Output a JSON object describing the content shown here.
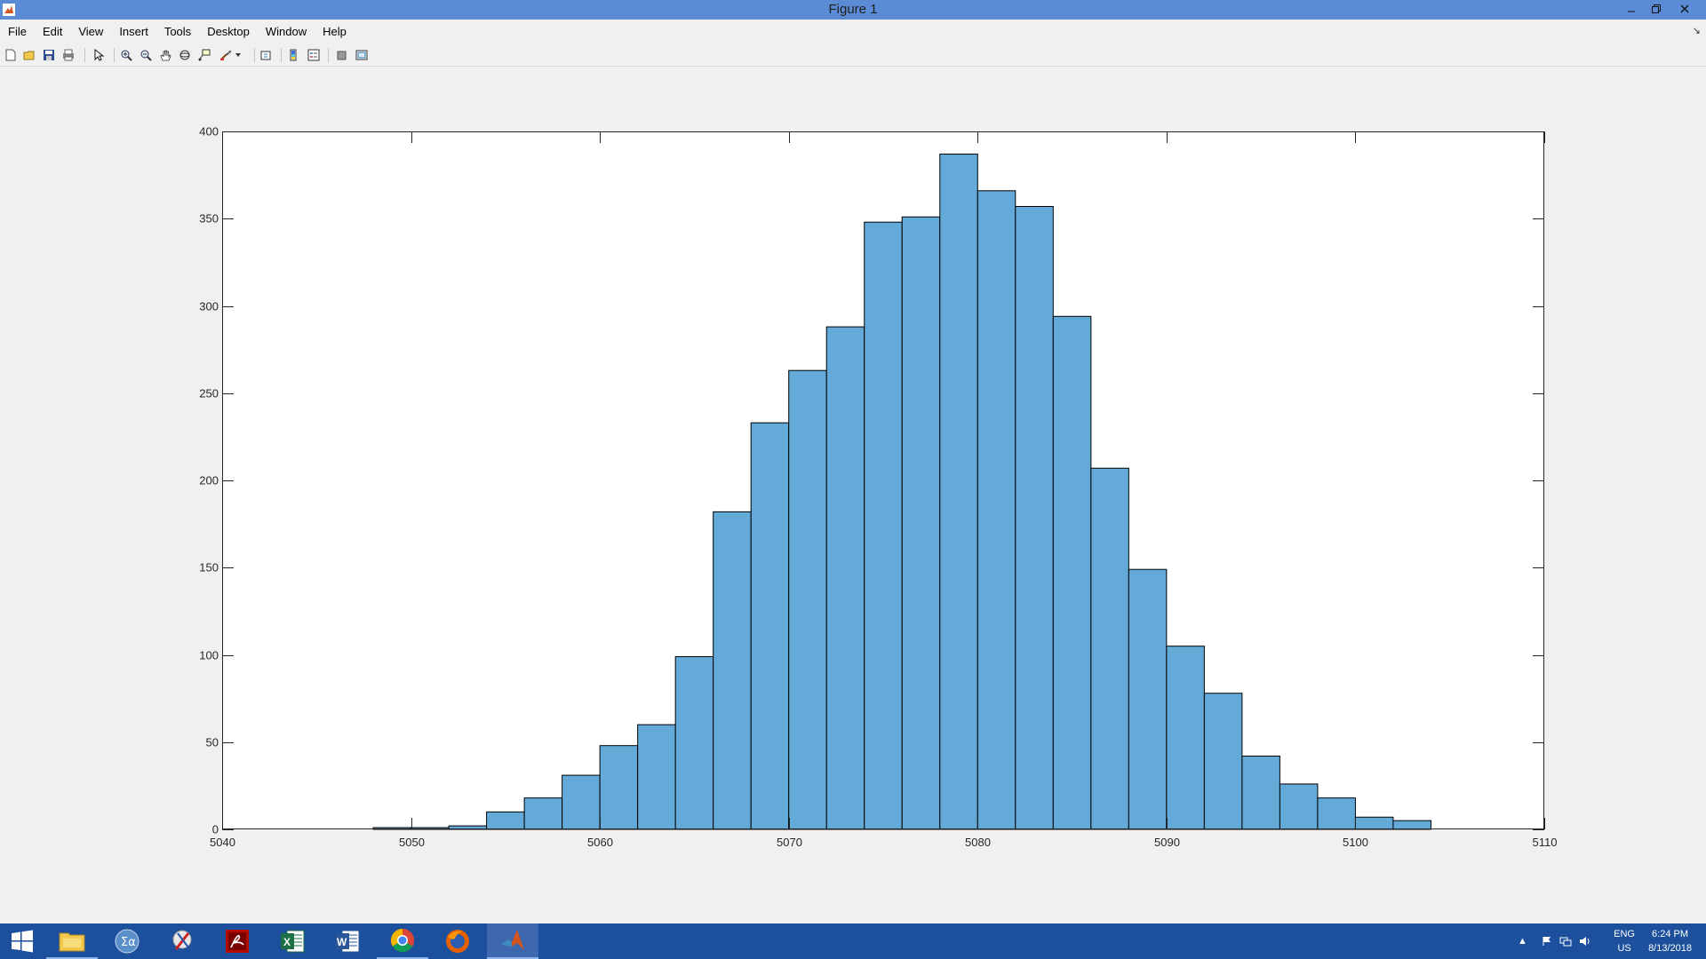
{
  "window": {
    "title": "Figure 1",
    "minimize_icon": "minimize-icon",
    "restore_icon": "restore-icon",
    "close_icon": "close-icon"
  },
  "menu": {
    "items": [
      "File",
      "Edit",
      "View",
      "Insert",
      "Tools",
      "Desktop",
      "Window",
      "Help"
    ]
  },
  "toolbar": {
    "buttons": [
      "new-figure-icon",
      "open-file-icon",
      "save-icon",
      "print-icon",
      "edit-plot-icon",
      "zoom-in-icon",
      "zoom-out-icon",
      "pan-icon",
      "rotate-3d-icon",
      "data-cursor-icon",
      "brush-icon",
      "link-plot-icon",
      "insert-colorbar-icon",
      "insert-legend-icon",
      "hide-plot-tools-icon",
      "show-plot-tools-icon"
    ]
  },
  "chart_data": {
    "type": "bar",
    "subtype": "histogram",
    "title": "",
    "xlabel": "",
    "ylabel": "",
    "xlim": [
      5040,
      5110
    ],
    "ylim": [
      0,
      400
    ],
    "xticks": [
      5040,
      5050,
      5060,
      5070,
      5080,
      5090,
      5100,
      5110
    ],
    "yticks": [
      0,
      50,
      100,
      150,
      200,
      250,
      300,
      350,
      400
    ],
    "bin_width": 2,
    "bin_edges": [
      5048,
      5050,
      5052,
      5054,
      5056,
      5058,
      5060,
      5062,
      5064,
      5066,
      5068,
      5070,
      5072,
      5074,
      5076,
      5078,
      5080,
      5082,
      5084,
      5086,
      5088,
      5090,
      5092,
      5094,
      5096,
      5098,
      5100,
      5102,
      5104
    ],
    "values": [
      1,
      1,
      2,
      10,
      18,
      31,
      48,
      60,
      99,
      182,
      233,
      263,
      288,
      348,
      351,
      387,
      366,
      357,
      294,
      207,
      149,
      105,
      78,
      42,
      26,
      18,
      7,
      5
    ],
    "bar_color": "#64aad9",
    "edge_color": "#000000",
    "grid": false,
    "box": true
  },
  "taskbar": {
    "apps": [
      "start-icon",
      "file-explorer-icon",
      "math-app-icon",
      "tool-app-icon",
      "acrobat-icon",
      "excel-icon",
      "word-icon",
      "chrome-icon",
      "firefox-icon",
      "matlab-icon"
    ],
    "language_top": "ENG",
    "language_bottom": "US",
    "time": "6:24 PM",
    "date": "8/13/2018"
  }
}
